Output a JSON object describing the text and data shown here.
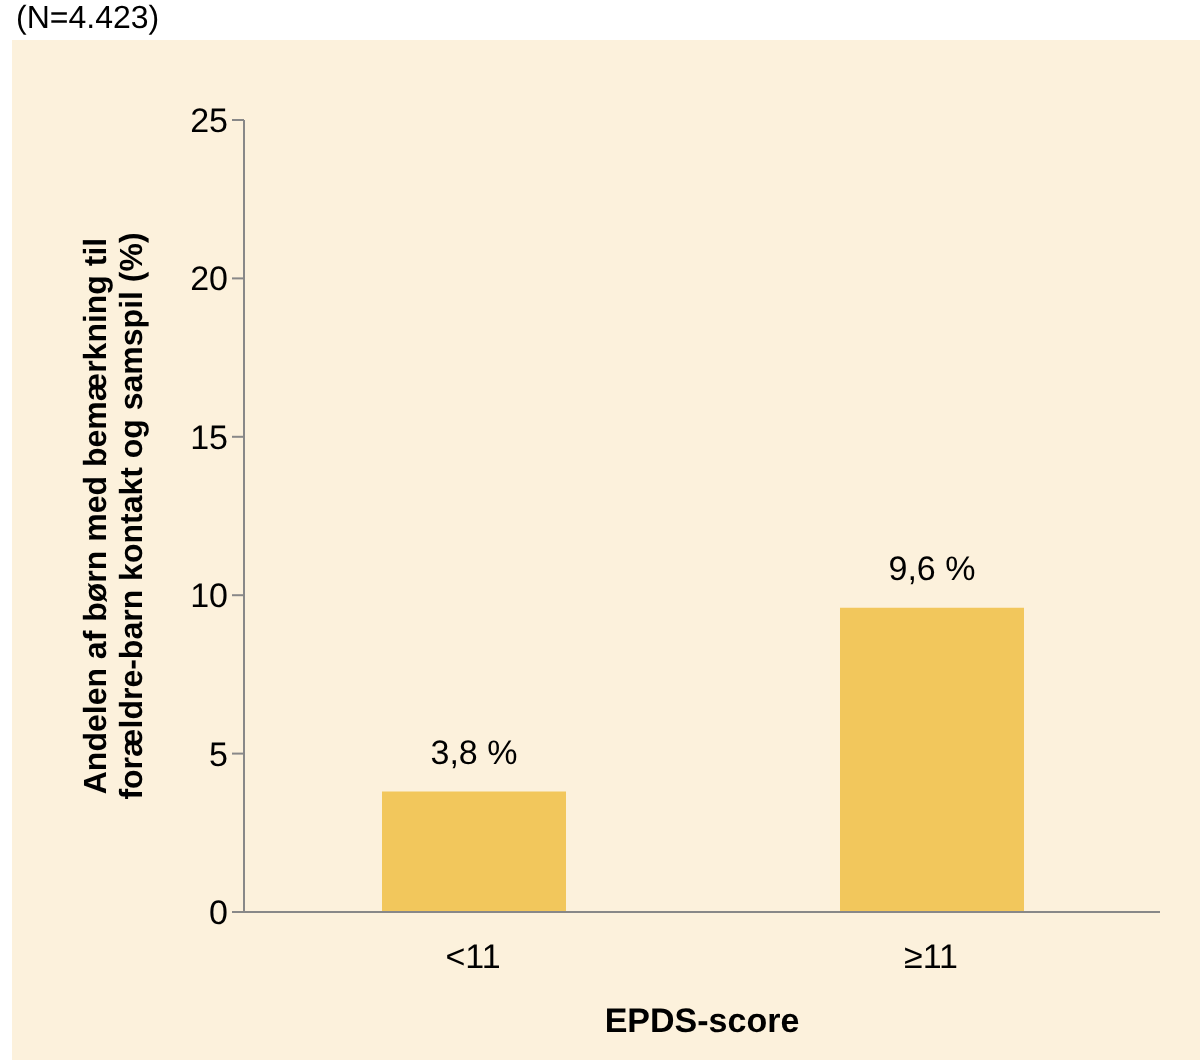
{
  "chart_data": {
    "type": "bar",
    "title": "(N=4.423)",
    "categories": [
      "<11",
      "≥11"
    ],
    "values": [
      3.8,
      9.6
    ],
    "value_labels": [
      "3,8 %",
      "9,6 %"
    ],
    "color": "#f2c75c",
    "xlabel": "EPDS-score",
    "ylabel": "Andelen af børn med bemærkning til forældre-barn kontakt og samspil (%)",
    "ylim": [
      0,
      25
    ],
    "yticks": [
      0,
      5,
      10,
      15,
      20,
      25
    ],
    "grid": false,
    "legend": false
  }
}
